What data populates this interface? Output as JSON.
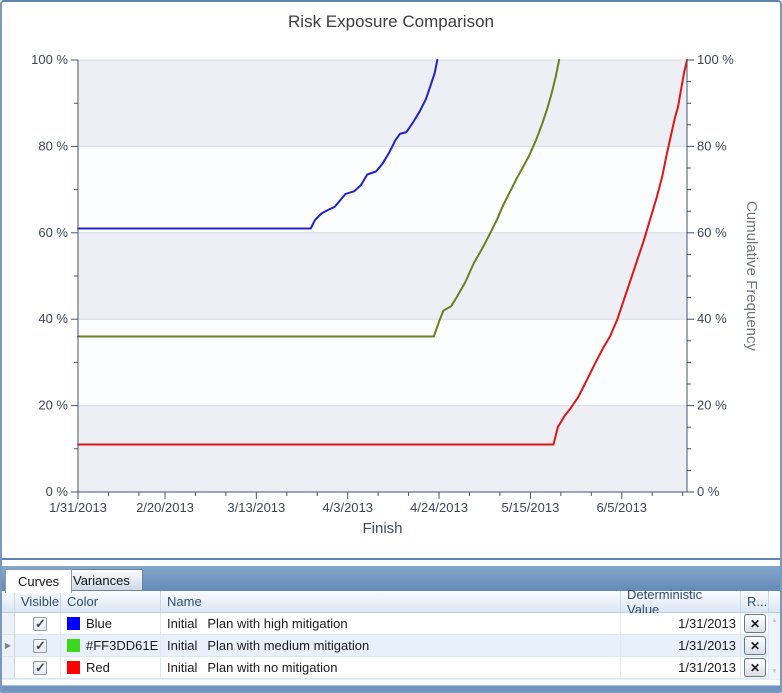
{
  "chart": {
    "title": "Risk Exposure Comparison"
  },
  "chart_data": {
    "type": "line",
    "title": "Risk Exposure Comparison",
    "xlabel": "Finish",
    "ylabel_right": "Cumulative Frequency",
    "x_axis_unit": "date (days offset from 1/31/2013)",
    "x_ticks": [
      {
        "label": "1/31/2013",
        "day": 0
      },
      {
        "label": "2/20/2013",
        "day": 20
      },
      {
        "label": "3/13/2013",
        "day": 41
      },
      {
        "label": "4/3/2013",
        "day": 62
      },
      {
        "label": "4/24/2013",
        "day": 83
      },
      {
        "label": "5/15/2013",
        "day": 104
      },
      {
        "label": "6/5/2013",
        "day": 125
      }
    ],
    "x_minor_ticks_days": [
      7,
      14,
      27,
      34,
      48,
      55,
      69,
      76,
      90,
      97,
      111,
      118,
      132,
      139
    ],
    "xlim_days": [
      0,
      140
    ],
    "ylim": [
      0,
      100
    ],
    "y_tick_step": 20,
    "y_minor_step_left": 10,
    "y_minor_step_right": 5,
    "y_tick_suffix": " %",
    "grid": "horizontal",
    "legend_position": "none",
    "plot_bands_pct": [
      [
        80,
        100
      ],
      [
        40,
        60
      ],
      [
        0,
        20
      ]
    ],
    "colors": {
      "band": "#edeff4",
      "plot_bg": "#fcfdff",
      "grid": "#d7dce6",
      "axis": "#46536e",
      "tick_label": "#3d4659",
      "axis_title": "#3c4c63",
      "ylabel_right_color": "#6e7684"
    },
    "series": [
      {
        "name": "Initial Plan with high mitigation",
        "color": "#2222cc",
        "points": [
          [
            0,
            61
          ],
          [
            53.5,
            61
          ],
          [
            54.5,
            63
          ],
          [
            56,
            64.5
          ],
          [
            57.5,
            65.3
          ],
          [
            59,
            66
          ],
          [
            60.5,
            67.8
          ],
          [
            61.5,
            69
          ],
          [
            63.5,
            69.6
          ],
          [
            65,
            71
          ],
          [
            66.5,
            73.5
          ],
          [
            68.5,
            74.2
          ],
          [
            70,
            76
          ],
          [
            71.5,
            78.5
          ],
          [
            73,
            81.5
          ],
          [
            74,
            82.9
          ],
          [
            75.5,
            83.3
          ],
          [
            77,
            85.5
          ],
          [
            78.5,
            88
          ],
          [
            80,
            91
          ],
          [
            81,
            94
          ],
          [
            82,
            97
          ],
          [
            82.6,
            100
          ]
        ]
      },
      {
        "name": "Initial Plan with medium mitigation",
        "color": "#6e7e1e",
        "points": [
          [
            0,
            36
          ],
          [
            81.8,
            36
          ],
          [
            83,
            39.5
          ],
          [
            84,
            42
          ],
          [
            85.8,
            43
          ],
          [
            87.3,
            45.5
          ],
          [
            89,
            48.5
          ],
          [
            91,
            53
          ],
          [
            93,
            56.5
          ],
          [
            94.8,
            60
          ],
          [
            96.3,
            63
          ],
          [
            97.8,
            66.5
          ],
          [
            99.3,
            69.5
          ],
          [
            100.8,
            72.5
          ],
          [
            102.3,
            75.2
          ],
          [
            103.8,
            78
          ],
          [
            105.3,
            81.5
          ],
          [
            106.8,
            85.5
          ],
          [
            107.8,
            88.5
          ],
          [
            108.8,
            92
          ],
          [
            109.8,
            96
          ],
          [
            110.6,
            100
          ]
        ]
      },
      {
        "name": "Initial Plan with no mitigation",
        "color": "#e01515",
        "points": [
          [
            0,
            11
          ],
          [
            109.3,
            11
          ],
          [
            110.3,
            15
          ],
          [
            111.8,
            17.5
          ],
          [
            113.3,
            19.5
          ],
          [
            115,
            22
          ],
          [
            117,
            26
          ],
          [
            119,
            30
          ],
          [
            120.8,
            33.5
          ],
          [
            122.3,
            36
          ],
          [
            124,
            40
          ],
          [
            126,
            46
          ],
          [
            128,
            52
          ],
          [
            130,
            58
          ],
          [
            131.5,
            63
          ],
          [
            133,
            68
          ],
          [
            134.3,
            73
          ],
          [
            135.3,
            78
          ],
          [
            136.3,
            82.5
          ],
          [
            137.3,
            87
          ],
          [
            137.9,
            89
          ],
          [
            138.7,
            93.5
          ],
          [
            139.3,
            97
          ],
          [
            140,
            100
          ]
        ]
      }
    ]
  },
  "tabs": [
    {
      "label": "Curves",
      "active": true
    },
    {
      "label": "Variances",
      "active": false
    }
  ],
  "table": {
    "headers": {
      "visible": "Visible",
      "color": "Color",
      "name": "Name",
      "deterministic": "Deterministic Value",
      "remove": "R..."
    },
    "rows": [
      {
        "visible": true,
        "swatch": "#0000ff",
        "color_label": "Blue",
        "name_prefix": "Initial",
        "name": "Plan with high mitigation",
        "deterministic": "1/31/2013",
        "current": false
      },
      {
        "visible": true,
        "swatch": "#3dd61e",
        "color_label": "#FF3DD61E",
        "name_prefix": "Initial",
        "name": "Plan with medium mitigation",
        "deterministic": "1/31/2013",
        "current": true
      },
      {
        "visible": true,
        "swatch": "#ff0000",
        "color_label": "Red",
        "name_prefix": "Initial",
        "name": "Plan with no mitigation",
        "deterministic": "1/31/2013",
        "current": false
      }
    ],
    "delete_icon": "✕",
    "current_row_icon": "▶",
    "scroll_up_icon": "▲",
    "scroll_down_icon": "▼"
  }
}
